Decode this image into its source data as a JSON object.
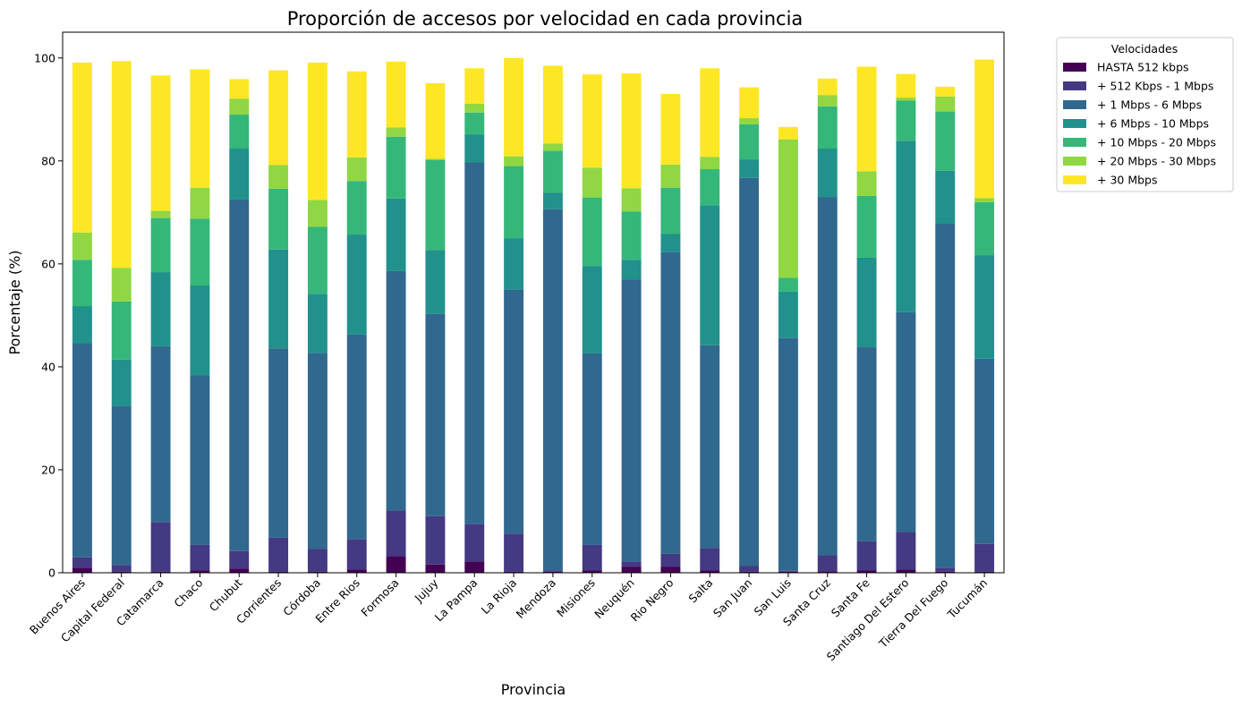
{
  "chart_data": {
    "type": "bar",
    "stacked": true,
    "title": "Proporción de accesos por velocidad en cada provincia",
    "xlabel": "Provincia",
    "ylabel": "Porcentaje (%)",
    "ylim": [
      0,
      105
    ],
    "yticks": [
      0,
      20,
      40,
      60,
      80,
      100
    ],
    "grid": false,
    "legend_title": "Velocidades",
    "legend_position": "outside-top-right",
    "categories": [
      "Buenos Aires",
      "Capital Federal",
      "Catamarca",
      "Chaco",
      "Chubut",
      "Corrientes",
      "Córdoba",
      "Entre Rios",
      "Formosa",
      "Jujuy",
      "La Pampa",
      "La Rioja",
      "Mendoza",
      "Misiones",
      "Neuquén",
      "Rio Negro",
      "Salta",
      "San Juan",
      "San Luis",
      "Santa Cruz",
      "Santa Fe",
      "Santiago Del Estero",
      "Tierra Del Fuego",
      "Tucumán"
    ],
    "series": [
      {
        "name": "HASTA 512 kbps",
        "color": "#440154",
        "values": [
          1.0,
          0.2,
          0.2,
          0.5,
          0.8,
          0.2,
          0.2,
          0.6,
          3.2,
          1.6,
          2.2,
          0.2,
          0.2,
          0.5,
          1.2,
          1.2,
          0.5,
          0.2,
          0.2,
          0.3,
          0.5,
          0.6,
          0.2,
          0.2
        ]
      },
      {
        "name": "+ 512 Kbps - 1 Mbps",
        "color": "#443983",
        "values": [
          2.0,
          1.3,
          9.6,
          4.9,
          3.4,
          6.6,
          4.4,
          5.9,
          8.9,
          9.4,
          7.2,
          7.4,
          0.3,
          4.9,
          1.0,
          2.5,
          4.3,
          1.1,
          0.2,
          3.1,
          5.6,
          7.3,
          0.8,
          5.4
        ]
      },
      {
        "name": "+ 1 Mbps - 6 Mbps",
        "color": "#31688e",
        "values": [
          41.6,
          30.9,
          34.2,
          33.0,
          68.3,
          36.8,
          38.1,
          39.8,
          46.5,
          39.3,
          70.3,
          47.4,
          70.1,
          37.2,
          54.8,
          58.6,
          39.4,
          75.4,
          45.2,
          69.6,
          37.7,
          42.7,
          66.8,
          36.0
        ]
      },
      {
        "name": "+ 6 Mbps - 10 Mbps",
        "color": "#21918c",
        "values": [
          7.2,
          9.0,
          14.4,
          17.4,
          9.9,
          19.2,
          11.5,
          19.4,
          14.1,
          12.4,
          5.4,
          10.0,
          3.2,
          17.0,
          3.8,
          3.5,
          27.2,
          3.6,
          9.0,
          9.4,
          17.4,
          33.3,
          10.3,
          20.1
        ]
      },
      {
        "name": "+ 10 Mbps - 20 Mbps",
        "color": "#35b779",
        "values": [
          9.0,
          11.3,
          10.5,
          13.0,
          6.6,
          11.8,
          13.0,
          10.4,
          12.0,
          17.5,
          4.3,
          14.0,
          8.2,
          13.3,
          9.4,
          9.0,
          7.0,
          6.8,
          2.7,
          8.2,
          12.0,
          7.8,
          11.5,
          10.3
        ]
      },
      {
        "name": "+ 20 Mbps - 30 Mbps",
        "color": "#90d743",
        "values": [
          5.3,
          6.5,
          1.4,
          6.0,
          3.1,
          4.6,
          5.2,
          4.6,
          1.8,
          0.2,
          1.7,
          1.9,
          1.4,
          5.8,
          4.5,
          4.5,
          2.4,
          1.2,
          26.9,
          2.2,
          4.8,
          0.6,
          2.9,
          0.8
        ]
      },
      {
        "name": "+ 30 Mbps",
        "color": "#fde725",
        "values": [
          33.0,
          40.2,
          26.3,
          23.0,
          3.8,
          18.4,
          26.7,
          16.7,
          12.8,
          14.7,
          6.9,
          19.1,
          15.1,
          18.1,
          22.3,
          13.7,
          17.2,
          6.0,
          2.4,
          3.2,
          20.3,
          4.6,
          1.9,
          26.9
        ]
      }
    ]
  }
}
